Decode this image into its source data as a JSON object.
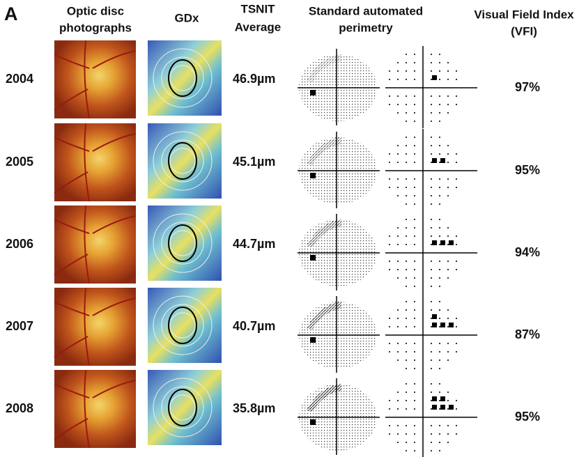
{
  "header": {
    "panel_label": "A",
    "columns": [
      {
        "lines": [
          "Optic disc",
          "photographs"
        ]
      },
      {
        "lines": [
          "GDx"
        ]
      },
      {
        "lines": [
          "TSNIT",
          "Average"
        ]
      },
      {
        "lines": [
          "Standard automated",
          "perimetry"
        ]
      },
      {
        "lines": [
          "Visual Field Index",
          "(VFI)"
        ]
      }
    ]
  },
  "rows": [
    {
      "year": "2004",
      "tsnit": "46.9µm",
      "vfi": "97%"
    },
    {
      "year": "2005",
      "tsnit": "45.1µm",
      "vfi": "95%"
    },
    {
      "year": "2006",
      "tsnit": "44.7µm",
      "vfi": "94%"
    },
    {
      "year": "2007",
      "tsnit": "40.7µm",
      "vfi": "87%"
    },
    {
      "year": "2008",
      "tsnit": "35.8µm",
      "vfi": "95%"
    }
  ]
}
